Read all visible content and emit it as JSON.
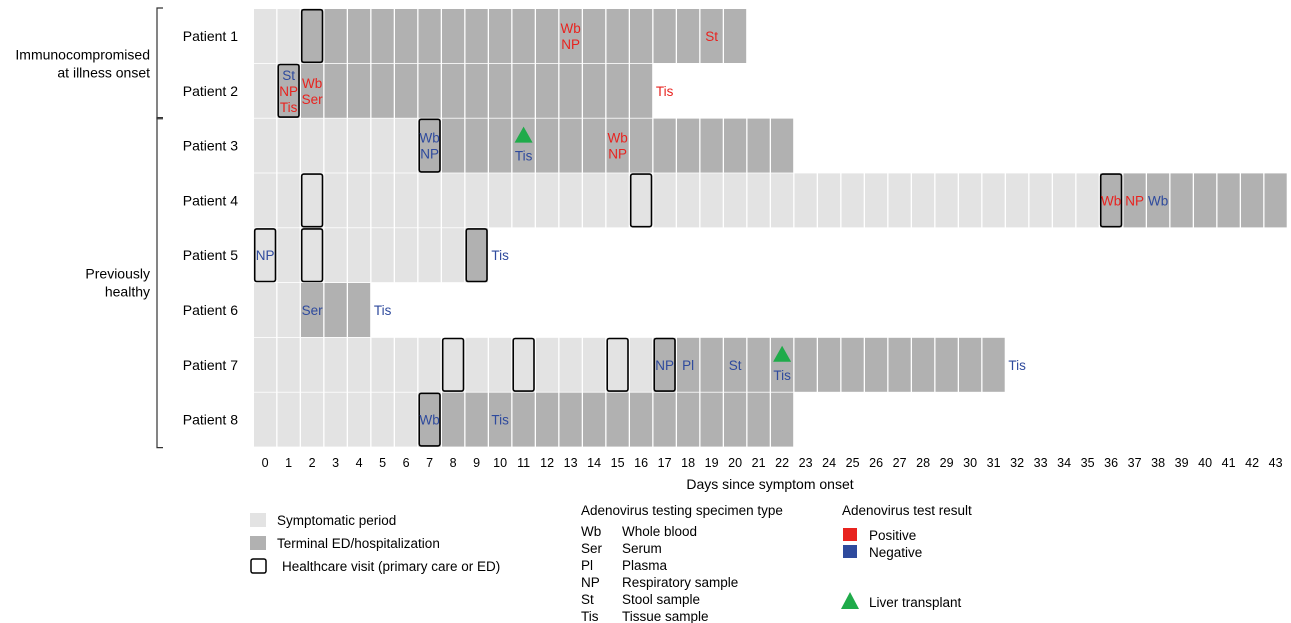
{
  "chart_data": {
    "type": "timeline",
    "xlabel": "Days since symptom onset",
    "x_ticks": [
      0,
      1,
      2,
      3,
      4,
      5,
      6,
      7,
      8,
      9,
      10,
      11,
      12,
      13,
      14,
      15,
      16,
      17,
      18,
      19,
      20,
      21,
      22,
      23,
      24,
      25,
      26,
      27,
      28,
      29,
      30,
      31,
      32,
      33,
      34,
      35,
      36,
      37,
      38,
      39,
      40,
      41,
      42,
      43
    ],
    "groups": [
      {
        "label_lines": [
          "Immunocompromised",
          "at illness onset"
        ],
        "patients": [
          "Patient 1",
          "Patient 2"
        ]
      },
      {
        "label_lines": [
          "Previously",
          "healthy"
        ],
        "patients": [
          "Patient 3",
          "Patient 4",
          "Patient 5",
          "Patient 6",
          "Patient 7",
          "Patient 8"
        ]
      }
    ],
    "patients": [
      {
        "name": "Patient 1",
        "symptomatic_days": [
          0,
          1
        ],
        "terminal_days": [
          2,
          20
        ],
        "visits": [
          2
        ],
        "tests": [
          {
            "day": 13,
            "lines": [
              {
                "text": "Wb",
                "result": "positive"
              },
              {
                "text": "NP",
                "result": "positive"
              }
            ]
          },
          {
            "day": 19,
            "lines": [
              {
                "text": "St",
                "result": "positive"
              }
            ]
          }
        ],
        "transplant_days": []
      },
      {
        "name": "Patient 2",
        "symptomatic_days": [
          0,
          0
        ],
        "terminal_days": [
          1,
          16
        ],
        "visits": [
          1
        ],
        "tests": [
          {
            "day": 1,
            "lines": [
              {
                "text": "St",
                "result": "negative"
              },
              {
                "text": "NP",
                "result": "positive"
              },
              {
                "text": "Tis",
                "result": "positive"
              }
            ]
          },
          {
            "day": 2,
            "lines": [
              {
                "text": "Wb",
                "result": "positive"
              },
              {
                "text": "Ser",
                "result": "positive"
              }
            ]
          },
          {
            "day": 17,
            "lines": [
              {
                "text": "Tis",
                "result": "positive"
              }
            ]
          }
        ],
        "transplant_days": []
      },
      {
        "name": "Patient 3",
        "symptomatic_days": [
          0,
          6
        ],
        "terminal_days": [
          7,
          22
        ],
        "visits": [
          7
        ],
        "tests": [
          {
            "day": 7,
            "lines": [
              {
                "text": "Wb",
                "result": "negative"
              },
              {
                "text": "NP",
                "result": "negative"
              }
            ]
          },
          {
            "day": 11,
            "lines": [
              {
                "text": "Tis",
                "result": "negative"
              }
            ]
          },
          {
            "day": 15,
            "lines": [
              {
                "text": "Wb",
                "result": "positive"
              },
              {
                "text": "NP",
                "result": "positive"
              }
            ]
          }
        ],
        "transplant_days": [
          11
        ]
      },
      {
        "name": "Patient 4",
        "symptomatic_days": [
          0,
          35
        ],
        "terminal_days": [
          36,
          43
        ],
        "visits": [
          2,
          16,
          36
        ],
        "tests": [
          {
            "day": 36,
            "lines": [
              {
                "text": "Wb",
                "result": "positive"
              }
            ]
          },
          {
            "day": 37,
            "lines": [
              {
                "text": "NP",
                "result": "positive"
              }
            ]
          },
          {
            "day": 38,
            "lines": [
              {
                "text": "Wb",
                "result": "negative"
              }
            ]
          }
        ],
        "transplant_days": []
      },
      {
        "name": "Patient 5",
        "symptomatic_days": [
          0,
          8
        ],
        "terminal_days": [
          9,
          9
        ],
        "visits": [
          0,
          2,
          9
        ],
        "tests": [
          {
            "day": 0,
            "lines": [
              {
                "text": "NP",
                "result": "negative"
              }
            ]
          },
          {
            "day": 10,
            "lines": [
              {
                "text": "Tis",
                "result": "negative"
              }
            ]
          }
        ],
        "transplant_days": []
      },
      {
        "name": "Patient 6",
        "symptomatic_days": [
          0,
          1
        ],
        "terminal_days": [
          2,
          4
        ],
        "visits": [],
        "tests": [
          {
            "day": 2,
            "lines": [
              {
                "text": "Ser",
                "result": "negative"
              }
            ]
          },
          {
            "day": 5,
            "lines": [
              {
                "text": "Tis",
                "result": "negative"
              }
            ]
          }
        ],
        "transplant_days": []
      },
      {
        "name": "Patient 7",
        "symptomatic_days": [
          0,
          16
        ],
        "terminal_days": [
          17,
          31
        ],
        "visits": [
          8,
          11,
          15,
          17
        ],
        "tests": [
          {
            "day": 17,
            "lines": [
              {
                "text": "NP",
                "result": "negative"
              }
            ]
          },
          {
            "day": 18,
            "lines": [
              {
                "text": "Pl",
                "result": "negative"
              }
            ]
          },
          {
            "day": 20,
            "lines": [
              {
                "text": "St",
                "result": "negative"
              }
            ]
          },
          {
            "day": 22,
            "lines": [
              {
                "text": "Tis",
                "result": "negative"
              }
            ]
          },
          {
            "day": 32,
            "lines": [
              {
                "text": "Tis",
                "result": "negative"
              }
            ]
          }
        ],
        "transplant_days": [
          22
        ]
      },
      {
        "name": "Patient 8",
        "symptomatic_days": [
          0,
          6
        ],
        "terminal_days": [
          7,
          22
        ],
        "visits": [
          7
        ],
        "tests": [
          {
            "day": 7,
            "lines": [
              {
                "text": "Wb",
                "result": "negative"
              }
            ]
          },
          {
            "day": 10,
            "lines": [
              {
                "text": "Tis",
                "result": "negative"
              }
            ]
          }
        ],
        "transplant_days": []
      }
    ],
    "legend_period": [
      {
        "key": "symptomatic",
        "label": "Symptomatic period"
      },
      {
        "key": "terminal",
        "label": "Terminal ED/hospitalization"
      },
      {
        "key": "visit",
        "label": "Healthcare visit (primary care or ED)"
      }
    ],
    "legend_specimen": {
      "title": "Adenovirus testing specimen type",
      "items": [
        {
          "code": "Wb",
          "label": "Whole blood"
        },
        {
          "code": "Ser",
          "label": "Serum"
        },
        {
          "code": "Pl",
          "label": "Plasma"
        },
        {
          "code": "NP",
          "label": "Respiratory sample"
        },
        {
          "code": "St",
          "label": "Stool sample"
        },
        {
          "code": "Tis",
          "label": "Tissue sample"
        }
      ]
    },
    "legend_result": {
      "title": "Adenovirus test result",
      "items": [
        {
          "key": "positive",
          "label": "Positive"
        },
        {
          "key": "negative",
          "label": "Negative"
        }
      ]
    },
    "legend_transplant": "Liver transplant",
    "colors": {
      "symptomatic": "#e3e3e3",
      "terminal": "#b1b1b1",
      "positive": "#e8231f",
      "negative": "#2e4a9d",
      "transplant": "#1fab4a",
      "visit_border": "#000000"
    }
  }
}
